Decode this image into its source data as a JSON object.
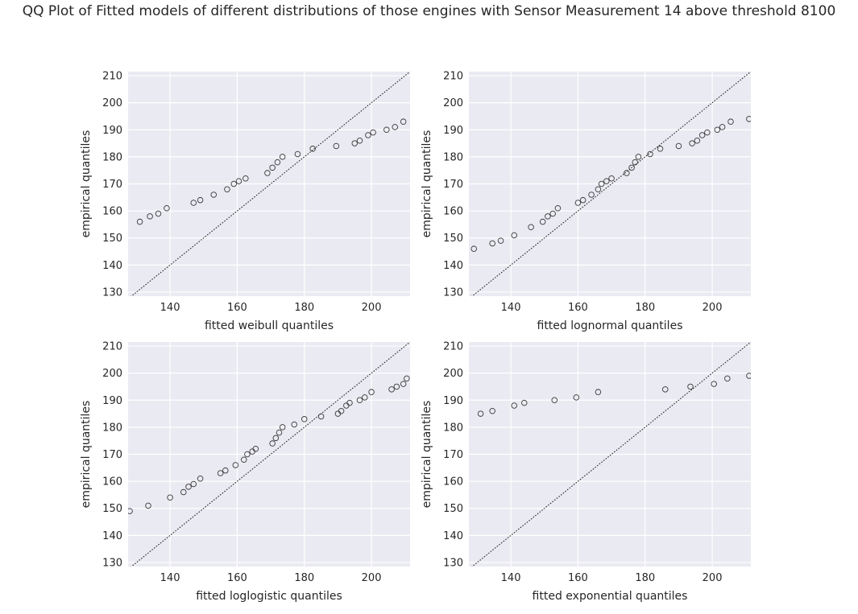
{
  "title": "QQ Plot of Fitted models of different distributions of those engines with Sensor Measurement 14 above threshold 8100",
  "chart_data": [
    {
      "type": "scatter",
      "xlabel": "fitted weibull quantiles",
      "ylabel": "empirical quantiles",
      "xlim": [
        127.5,
        211.5
      ],
      "ylim": [
        128.5,
        211.5
      ],
      "xticks": [
        140,
        160,
        180,
        200
      ],
      "yticks": [
        130,
        140,
        150,
        160,
        170,
        180,
        190,
        200,
        210
      ],
      "reference_line": "y = x",
      "grid": true,
      "points": [
        [
          131,
          156
        ],
        [
          134,
          158
        ],
        [
          136.5,
          159
        ],
        [
          139,
          161
        ],
        [
          147,
          163
        ],
        [
          149,
          164
        ],
        [
          153,
          166
        ],
        [
          157,
          168
        ],
        [
          159,
          170
        ],
        [
          160.5,
          171
        ],
        [
          162.5,
          172
        ],
        [
          169,
          174
        ],
        [
          170.5,
          176
        ],
        [
          172,
          178
        ],
        [
          173.5,
          180
        ],
        [
          178,
          181
        ],
        [
          182.5,
          183
        ],
        [
          189.5,
          184
        ],
        [
          195,
          185
        ],
        [
          196.5,
          186
        ],
        [
          199,
          188
        ],
        [
          200.5,
          189
        ],
        [
          204.5,
          190
        ],
        [
          207,
          191
        ],
        [
          209.5,
          193
        ]
      ]
    },
    {
      "type": "scatter",
      "xlabel": "fitted lognormal quantiles",
      "ylabel": "empirical quantiles",
      "xlim": [
        127.5,
        211.5
      ],
      "ylim": [
        128.5,
        211.5
      ],
      "xticks": [
        140,
        160,
        180,
        200
      ],
      "yticks": [
        130,
        140,
        150,
        160,
        170,
        180,
        190,
        200,
        210
      ],
      "reference_line": "y = x",
      "grid": true,
      "points": [
        [
          129,
          146
        ],
        [
          134.5,
          148
        ],
        [
          137,
          149
        ],
        [
          141,
          151
        ],
        [
          146,
          154
        ],
        [
          149.5,
          156
        ],
        [
          151,
          158
        ],
        [
          152.5,
          159
        ],
        [
          154,
          161
        ],
        [
          160,
          163
        ],
        [
          161.5,
          164
        ],
        [
          164,
          166
        ],
        [
          166,
          168
        ],
        [
          167,
          170
        ],
        [
          168.5,
          171
        ],
        [
          170,
          172
        ],
        [
          174.5,
          174
        ],
        [
          176,
          176
        ],
        [
          177,
          178
        ],
        [
          178,
          180
        ],
        [
          181.5,
          181
        ],
        [
          184.5,
          183
        ],
        [
          190,
          184
        ],
        [
          194,
          185
        ],
        [
          195.5,
          186
        ],
        [
          197,
          188
        ],
        [
          198.5,
          189
        ],
        [
          201.5,
          190
        ],
        [
          203,
          191
        ],
        [
          205.5,
          193
        ],
        [
          211,
          194
        ]
      ]
    },
    {
      "type": "scatter",
      "xlabel": "fitted loglogistic quantiles",
      "ylabel": "empirical quantiles",
      "xlim": [
        127.5,
        211.5
      ],
      "ylim": [
        128.5,
        211.5
      ],
      "xticks": [
        140,
        160,
        180,
        200
      ],
      "yticks": [
        130,
        140,
        150,
        160,
        170,
        180,
        190,
        200,
        210
      ],
      "reference_line": "y = x",
      "grid": true,
      "points": [
        [
          128,
          149
        ],
        [
          133.5,
          151
        ],
        [
          140,
          154
        ],
        [
          144,
          156
        ],
        [
          145.5,
          158
        ],
        [
          147,
          159
        ],
        [
          149,
          161
        ],
        [
          155,
          163
        ],
        [
          156.5,
          164
        ],
        [
          159.5,
          166
        ],
        [
          162,
          168
        ],
        [
          163,
          170
        ],
        [
          164.5,
          171
        ],
        [
          165.5,
          172
        ],
        [
          170.5,
          174
        ],
        [
          171.5,
          176
        ],
        [
          172.5,
          178
        ],
        [
          173.5,
          180
        ],
        [
          177,
          181
        ],
        [
          180,
          183
        ],
        [
          185,
          184
        ],
        [
          190,
          185
        ],
        [
          191,
          186
        ],
        [
          192.5,
          188
        ],
        [
          193.5,
          189
        ],
        [
          196.5,
          190
        ],
        [
          198,
          191
        ],
        [
          200,
          193
        ],
        [
          206,
          194
        ],
        [
          207.5,
          195
        ],
        [
          209.5,
          196
        ],
        [
          210.5,
          198
        ]
      ]
    },
    {
      "type": "scatter",
      "xlabel": "fitted exponential quantiles",
      "ylabel": "empirical quantiles",
      "xlim": [
        127.5,
        211.5
      ],
      "ylim": [
        128.5,
        211.5
      ],
      "xticks": [
        140,
        160,
        180,
        200
      ],
      "yticks": [
        130,
        140,
        150,
        160,
        170,
        180,
        190,
        200,
        210
      ],
      "reference_line": "y = x",
      "grid": true,
      "points": [
        [
          131,
          185
        ],
        [
          134.5,
          186
        ],
        [
          141,
          188
        ],
        [
          144,
          189
        ],
        [
          153,
          190
        ],
        [
          159.5,
          191
        ],
        [
          166,
          193
        ],
        [
          186,
          194
        ],
        [
          193.5,
          195
        ],
        [
          200.5,
          196
        ],
        [
          204.5,
          198
        ],
        [
          211,
          199
        ]
      ]
    }
  ]
}
